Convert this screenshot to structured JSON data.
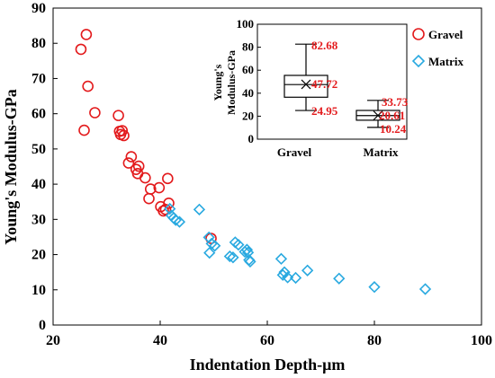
{
  "chart_data": [
    {
      "type": "scatter",
      "xlabel": "Indentation Depth-μm",
      "ylabel": "Young's Modulus-GPa",
      "xlim": [
        20,
        100
      ],
      "ylim": [
        0,
        90
      ],
      "xticks": [
        20,
        40,
        60,
        80,
        100
      ],
      "yticks": [
        0,
        10,
        20,
        30,
        40,
        50,
        60,
        70,
        80,
        90
      ],
      "grid": false,
      "legend_placement": "top-right",
      "series": [
        {
          "name": "Gravel",
          "marker": "circle",
          "color": "#e31a1c",
          "points": [
            [
              25.2,
              78.3
            ],
            [
              25.8,
              55.3
            ],
            [
              26.2,
              82.5
            ],
            [
              26.5,
              67.8
            ],
            [
              27.8,
              60.3
            ],
            [
              32.2,
              59.5
            ],
            [
              32.4,
              55.0
            ],
            [
              32.6,
              54.1
            ],
            [
              32.9,
              55.2
            ],
            [
              33.2,
              53.8
            ],
            [
              34.1,
              46.0
            ],
            [
              34.6,
              47.8
            ],
            [
              35.5,
              44.2
            ],
            [
              35.8,
              43.0
            ],
            [
              36.0,
              45.1
            ],
            [
              37.2,
              41.8
            ],
            [
              37.9,
              35.9
            ],
            [
              38.2,
              38.6
            ],
            [
              39.8,
              39.0
            ],
            [
              40.1,
              33.6
            ],
            [
              40.6,
              32.4
            ],
            [
              41.0,
              32.8
            ],
            [
              41.4,
              41.6
            ],
            [
              41.6,
              34.6
            ],
            [
              49.5,
              24.6
            ]
          ]
        },
        {
          "name": "Matrix",
          "marker": "diamond",
          "color": "#29a9e0",
          "points": [
            [
              41.8,
              33.0
            ],
            [
              42.1,
              31.1
            ],
            [
              42.5,
              30.4
            ],
            [
              42.9,
              29.8
            ],
            [
              43.6,
              29.3
            ],
            [
              47.3,
              32.8
            ],
            [
              49.1,
              24.9
            ],
            [
              49.2,
              20.5
            ],
            [
              49.6,
              23.1
            ],
            [
              50.2,
              22.5
            ],
            [
              53.0,
              19.5
            ],
            [
              53.6,
              19.2
            ],
            [
              54.0,
              23.5
            ],
            [
              54.6,
              22.8
            ],
            [
              55.8,
              20.8
            ],
            [
              56.2,
              21.4
            ],
            [
              56.4,
              20.6
            ],
            [
              56.6,
              18.5
            ],
            [
              56.8,
              18.0
            ],
            [
              62.6,
              18.8
            ],
            [
              62.9,
              14.2
            ],
            [
              63.2,
              15.0
            ],
            [
              63.8,
              13.5
            ],
            [
              65.3,
              13.4
            ],
            [
              67.5,
              15.5
            ],
            [
              73.4,
              13.2
            ],
            [
              80.0,
              10.8
            ],
            [
              89.5,
              10.2
            ]
          ]
        }
      ]
    },
    {
      "type": "box",
      "ylabel": "Young's Modulus-GPa",
      "ylim": [
        0,
        100
      ],
      "yticks": [
        0,
        20,
        40,
        60,
        80,
        100
      ],
      "categories": [
        "Gravel",
        "Matrix"
      ],
      "boxes": [
        {
          "category": "Gravel",
          "min": 24.95,
          "q1": 36.5,
          "median": 47.5,
          "q3": 55.5,
          "max": 82.68,
          "mean": 47.72
        },
        {
          "category": "Matrix",
          "min": 10.24,
          "q1": 16.5,
          "median": 20.5,
          "q3": 25.0,
          "max": 33.73,
          "mean": 20.61
        }
      ],
      "labels": {
        "gravel_max": "82.68",
        "gravel_mean": "47.72",
        "gravel_min": "24.95",
        "matrix_max": "33.73",
        "matrix_mean": "20.61",
        "matrix_min": "10.24"
      }
    }
  ],
  "legend": {
    "gravel": "Gravel",
    "matrix": "Matrix"
  },
  "colors": {
    "gravel": "#e31a1c",
    "matrix": "#29a9e0",
    "stat_label": "#e31a1c"
  }
}
